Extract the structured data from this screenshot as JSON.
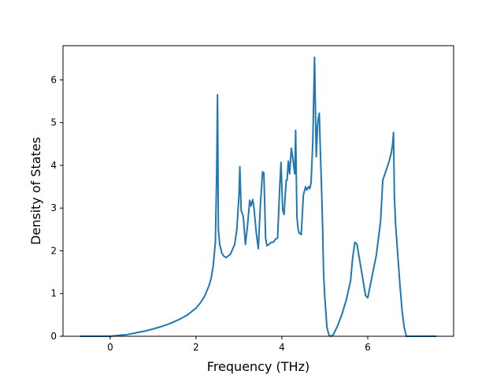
{
  "chart_data": {
    "type": "line",
    "title": "",
    "xlabel": "Frequency (THz)",
    "ylabel": "Density of States",
    "xlim": [
      -1.1,
      8.0
    ],
    "ylim": [
      0,
      6.8
    ],
    "x_ticks": [
      0,
      2,
      4,
      6
    ],
    "y_ticks": [
      0,
      1,
      2,
      3,
      4,
      5,
      6
    ],
    "x_tick_labels": [
      "0",
      "2",
      "4",
      "6"
    ],
    "y_tick_labels": [
      "0",
      "1",
      "2",
      "3",
      "4",
      "5",
      "6"
    ],
    "grid": false,
    "colors": {
      "line": "#1f77b4"
    },
    "series": [
      {
        "x": [
          -0.7,
          -0.1,
          0.0,
          0.2,
          0.4,
          0.6,
          0.8,
          1.0,
          1.2,
          1.4,
          1.6,
          1.8,
          2.0,
          2.1,
          2.2,
          2.3,
          2.35,
          2.4,
          2.45,
          2.48,
          2.5,
          2.52,
          2.55,
          2.6,
          2.65,
          2.7,
          2.8,
          2.9,
          2.95,
          3.0,
          3.02,
          3.05,
          3.1,
          3.15,
          3.2,
          3.25,
          3.28,
          3.32,
          3.35,
          3.4,
          3.45,
          3.5,
          3.55,
          3.58,
          3.62,
          3.65,
          3.7,
          3.75,
          3.8,
          3.85,
          3.9,
          3.95,
          3.98,
          4.0,
          4.02,
          4.05,
          4.1,
          4.12,
          4.15,
          4.18,
          4.22,
          4.25,
          4.28,
          4.3,
          4.32,
          4.35,
          4.38,
          4.4,
          4.45,
          4.5,
          4.55,
          4.58,
          4.62,
          4.65,
          4.68,
          4.72,
          4.76,
          4.8,
          4.83,
          4.85,
          4.87,
          4.9,
          4.92,
          4.95,
          4.97,
          5.0,
          5.05,
          5.1,
          5.15,
          5.2,
          5.3,
          5.4,
          5.5,
          5.6,
          5.65,
          5.7,
          5.75,
          5.8,
          5.85,
          5.9,
          5.95,
          6.0,
          6.1,
          6.2,
          6.3,
          6.35,
          6.4,
          6.45,
          6.5,
          6.55,
          6.58,
          6.6,
          6.62,
          6.65,
          6.7,
          6.75,
          6.8,
          6.85,
          6.9,
          7.0,
          7.6
        ],
        "y": [
          0.0,
          0.0,
          0.0,
          0.02,
          0.04,
          0.08,
          0.12,
          0.17,
          0.23,
          0.3,
          0.39,
          0.5,
          0.66,
          0.78,
          0.94,
          1.18,
          1.35,
          1.65,
          2.2,
          3.8,
          5.65,
          2.5,
          2.15,
          1.95,
          1.87,
          1.84,
          1.92,
          2.15,
          2.5,
          3.3,
          3.97,
          2.95,
          2.8,
          2.15,
          2.6,
          3.18,
          3.05,
          3.2,
          3.0,
          2.45,
          2.05,
          3.1,
          3.85,
          3.82,
          2.3,
          2.12,
          2.15,
          2.2,
          2.2,
          2.27,
          2.3,
          3.5,
          4.07,
          3.45,
          2.95,
          2.85,
          3.65,
          3.65,
          4.1,
          3.8,
          4.4,
          4.2,
          3.95,
          3.8,
          4.82,
          2.8,
          2.5,
          2.42,
          2.38,
          3.3,
          3.5,
          3.42,
          3.5,
          3.45,
          3.6,
          4.55,
          6.53,
          4.2,
          4.95,
          5.1,
          5.22,
          4.2,
          3.6,
          2.5,
          1.5,
          0.9,
          0.2,
          0.02,
          0.0,
          0.04,
          0.25,
          0.52,
          0.85,
          1.3,
          1.85,
          2.2,
          2.15,
          1.85,
          1.55,
          1.25,
          0.95,
          0.9,
          1.4,
          1.9,
          2.7,
          3.65,
          3.8,
          3.95,
          4.1,
          4.3,
          4.5,
          4.77,
          3.3,
          2.6,
          1.9,
          1.2,
          0.6,
          0.2,
          0.0,
          0.0,
          0.0
        ]
      }
    ]
  }
}
